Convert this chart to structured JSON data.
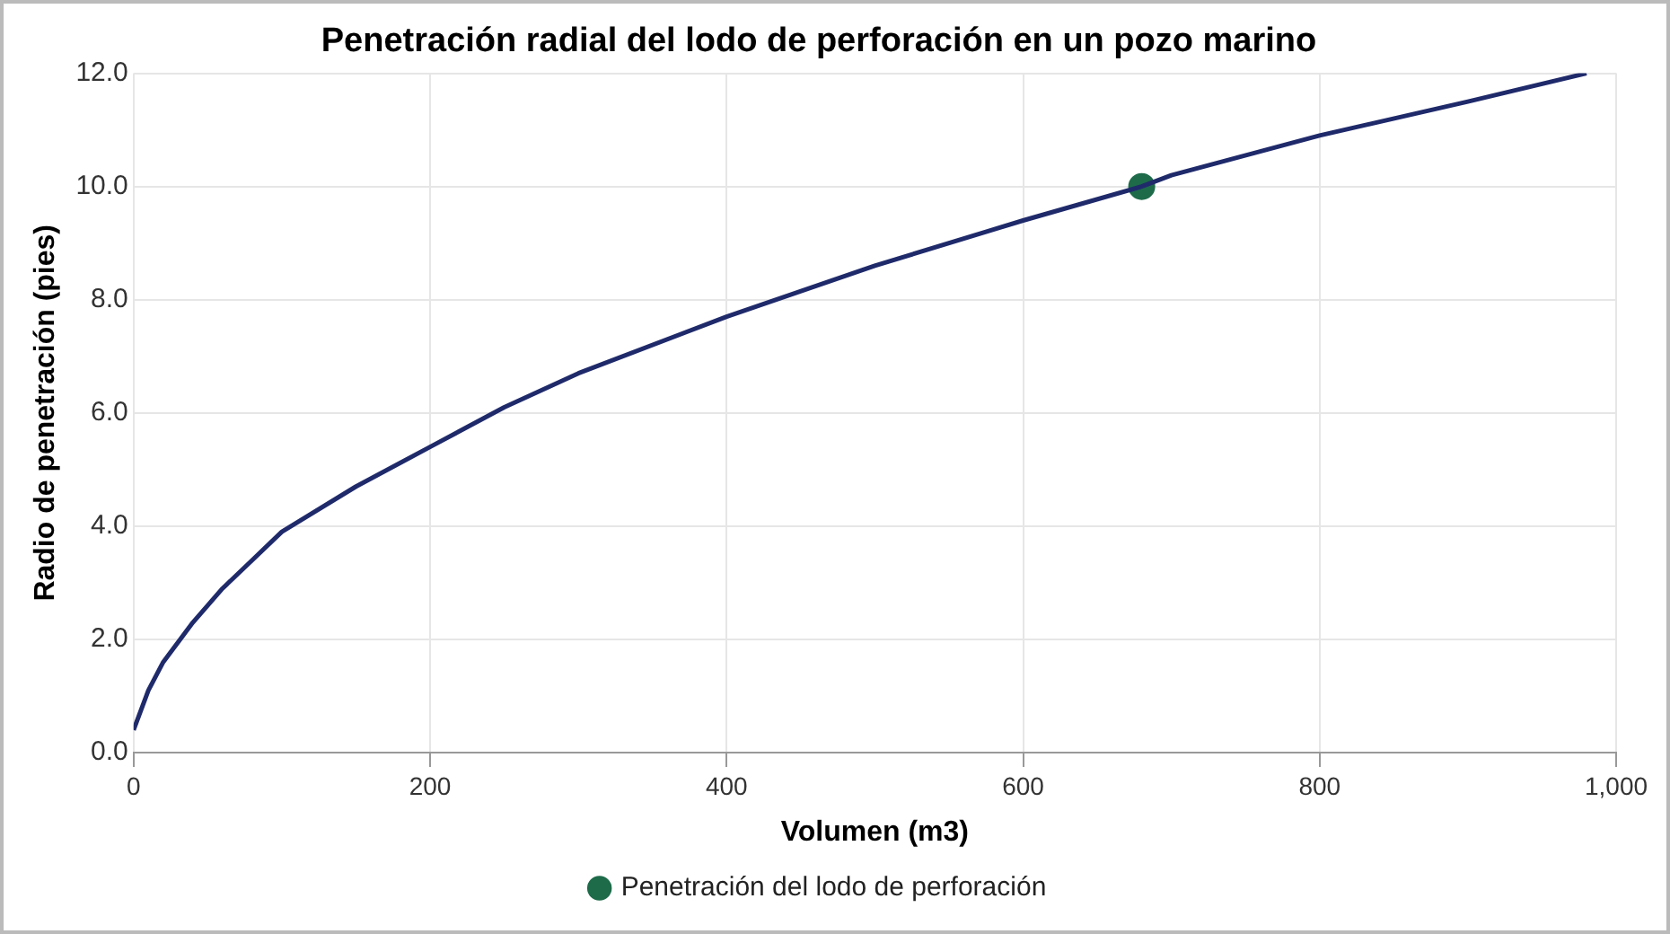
{
  "chart_data": {
    "type": "line",
    "title": "Penetración radial del lodo de perforación en un pozo marino",
    "xlabel": "Volumen (m3)",
    "ylabel": "Radio de penetración (pies)",
    "series": [
      {
        "type": "line",
        "color": "#1f2a6b",
        "marker": "none",
        "x": [
          0,
          10,
          20,
          40,
          60,
          80,
          100,
          150,
          200,
          250,
          300,
          400,
          500,
          600,
          680,
          700,
          800,
          900,
          980
        ],
        "values": [
          0.4,
          1.1,
          1.6,
          2.3,
          2.9,
          3.4,
          3.9,
          4.7,
          5.4,
          6.1,
          6.7,
          7.7,
          8.6,
          9.4,
          10.0,
          10.2,
          10.9,
          11.5,
          12.0
        ]
      },
      {
        "type": "scatter",
        "name": "Penetración del lodo de perforación",
        "color": "#1e6b4a",
        "marker": "circle",
        "x": [
          680
        ],
        "values": [
          10.0
        ]
      }
    ],
    "xlim": [
      0,
      1000
    ],
    "xticks": [
      0,
      200,
      400,
      600,
      800,
      {
        "value": 1000,
        "label": "1,000"
      }
    ],
    "ylim": [
      0,
      12
    ],
    "yticks": [
      {
        "value": 0,
        "label": "0.0"
      },
      {
        "value": 2,
        "label": "2.0"
      },
      {
        "value": 4,
        "label": "4.0"
      },
      {
        "value": 6,
        "label": "6.0"
      },
      {
        "value": 8,
        "label": "8.0"
      },
      {
        "value": 10,
        "label": "10.0"
      },
      {
        "value": 12,
        "label": "12.0"
      }
    ],
    "grid": true,
    "legend": "bottom"
  }
}
